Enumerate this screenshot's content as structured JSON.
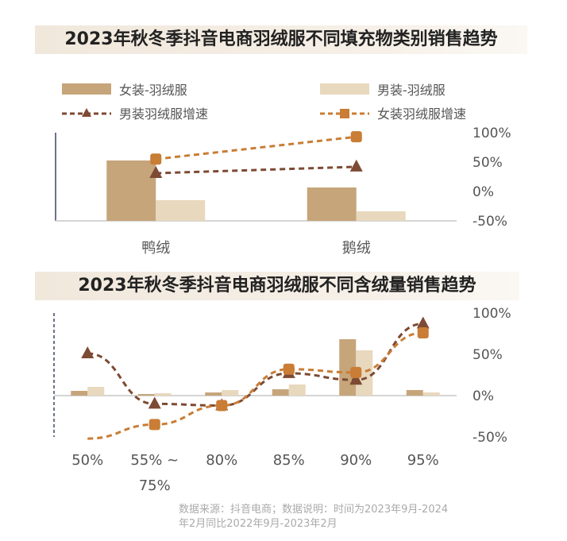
{
  "colors": {
    "female_bar": "#c6a57a",
    "male_bar": "#e8d8bd",
    "male_growth": "#7d4a33",
    "female_growth": "#c97d35"
  },
  "legend": {
    "female_bar": "女装-羽绒服",
    "male_bar": "男装-羽绒服",
    "male_growth": "男装羽绒服增速",
    "female_growth": "女装羽绒服增速"
  },
  "source": {
    "line1": "数据来源：抖音电商；数据说明：时间为2023年9月-2024",
    "line2": "年2月同比2022年9月-2023年2月"
  },
  "chart_data": [
    {
      "type": "bar+line",
      "title": "2023年秋冬季抖音电商羽绒服不同填充物类别销售趋势",
      "categories": [
        "鸭绒",
        "鹅绒"
      ],
      "y2_ticks": [
        "100%",
        "50%",
        "0%",
        "-50%"
      ],
      "y2lim": [
        -50,
        100
      ],
      "series": [
        {
          "name": "女装-羽绒服",
          "kind": "bar",
          "relative_values": [
            76,
            42
          ]
        },
        {
          "name": "男装-羽绒服",
          "kind": "bar",
          "relative_values": [
            26,
            12
          ]
        },
        {
          "name": "男装羽绒服增速",
          "kind": "line",
          "values": [
            31,
            42
          ]
        },
        {
          "name": "女装羽绒服增速",
          "kind": "line",
          "values": [
            55,
            93
          ]
        }
      ]
    },
    {
      "type": "bar+line",
      "title": "2023年秋冬季抖音电商羽绒服不同含绒量销售趋势",
      "categories": [
        "50%",
        "55% ~ 75%",
        "80%",
        "85%",
        "90%",
        "95%"
      ],
      "y2_ticks": [
        "100%",
        "50%",
        "0%",
        "-50%"
      ],
      "y2lim": [
        -50,
        100
      ],
      "series": [
        {
          "name": "女装-羽绒服",
          "kind": "bar",
          "relative_values": [
            6,
            2,
            4,
            8,
            71,
            7
          ]
        },
        {
          "name": "男装-羽绒服",
          "kind": "bar",
          "relative_values": [
            11,
            3,
            7,
            14,
            57,
            4
          ]
        },
        {
          "name": "男装羽绒服增速",
          "kind": "line",
          "values": [
            51,
            -10,
            -12,
            27,
            19,
            87
          ]
        },
        {
          "name": "女装羽绒服增速",
          "kind": "line",
          "values": [
            -52,
            -35,
            -12,
            32,
            28,
            76
          ]
        }
      ]
    }
  ]
}
